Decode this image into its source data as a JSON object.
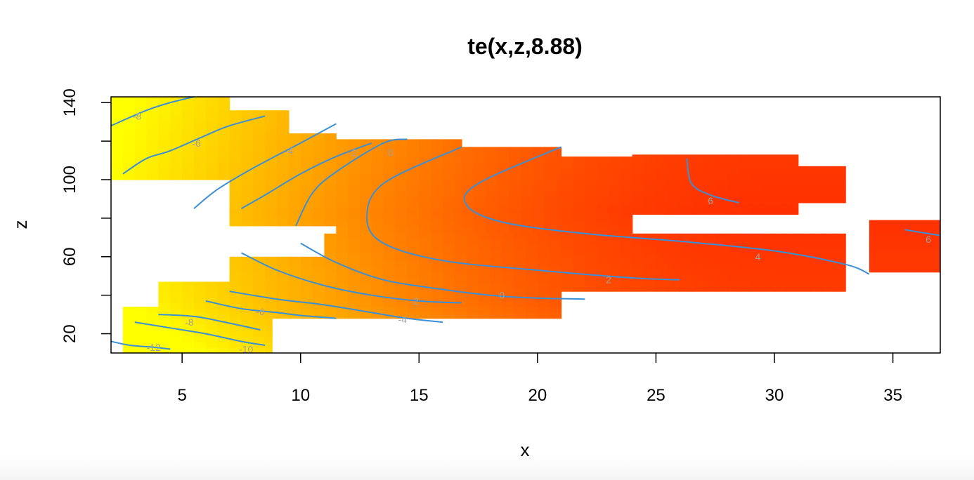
{
  "chart_data": {
    "type": "heatmap",
    "title": "te(x,z,8.88)",
    "xlabel": "x",
    "ylabel": "z",
    "xlim": [
      2,
      37
    ],
    "ylim": [
      10,
      143
    ],
    "x_ticks": [
      5,
      10,
      15,
      20,
      25,
      30,
      35
    ],
    "y_ticks": [
      20,
      40,
      60,
      80,
      100,
      120,
      140
    ],
    "y_tick_labels": [
      20,
      60,
      100,
      140
    ],
    "colors": {
      "low": "#ffff00",
      "high": "#ff2000",
      "contour": "#3b8fd6",
      "contour_label": "#a0a0a0"
    },
    "color_range": [
      -13,
      8
    ],
    "regions": [
      {
        "x": [
          2,
          7
        ],
        "z": [
          100,
          143
        ]
      },
      {
        "x": [
          7,
          9.5
        ],
        "z": [
          76,
          136
        ]
      },
      {
        "x": [
          9.5,
          11.5
        ],
        "z": [
          76,
          124
        ]
      },
      {
        "x": [
          11.5,
          16.8
        ],
        "z": [
          70,
          121
        ]
      },
      {
        "x": [
          16.8,
          21
        ],
        "z": [
          70,
          117
        ]
      },
      {
        "x": [
          21,
          24
        ],
        "z": [
          70,
          112
        ]
      },
      {
        "x": [
          24,
          31
        ],
        "z": [
          82,
          113
        ]
      },
      {
        "x": [
          31,
          33
        ],
        "z": [
          88,
          107
        ]
      },
      {
        "x": [
          11,
          33
        ],
        "z": [
          42,
          72
        ]
      },
      {
        "x": [
          7,
          21
        ],
        "z": [
          28,
          60
        ]
      },
      {
        "x": [
          2.5,
          8.8
        ],
        "z": [
          10,
          34
        ]
      },
      {
        "x": [
          4,
          11
        ],
        "z": [
          33,
          47
        ]
      },
      {
        "x": [
          34,
          37
        ],
        "z": [
          52,
          79
        ]
      }
    ],
    "contours": [
      {
        "level": -12,
        "label": "-12",
        "points": [
          [
            2,
            16
          ],
          [
            2.8,
            14
          ],
          [
            3.8,
            13
          ],
          [
            4.5,
            12
          ]
        ],
        "label_at": [
          3.8,
          13
        ]
      },
      {
        "level": -10,
        "label": "-10",
        "points": [
          [
            3,
            26
          ],
          [
            4.5,
            23
          ],
          [
            6,
            20
          ],
          [
            7.5,
            16
          ],
          [
            8.5,
            14
          ]
        ],
        "label_at": [
          7.7,
          12
        ]
      },
      {
        "level": -8,
        "label": "-8",
        "points": [
          [
            2,
            128
          ],
          [
            3.5,
            136
          ],
          [
            4.5,
            140
          ],
          [
            5.5,
            143
          ]
        ],
        "label_at": [
          3.1,
          133
        ]
      },
      {
        "level": -8,
        "label": "-8",
        "points": [
          [
            4,
            30
          ],
          [
            5.5,
            29
          ],
          [
            7,
            25.5
          ],
          [
            8.3,
            22
          ]
        ],
        "label_at": [
          5.3,
          26
        ]
      },
      {
        "level": -6,
        "label": "-6",
        "points": [
          [
            2.5,
            103
          ],
          [
            3.5,
            111
          ],
          [
            4.5,
            115
          ],
          [
            6,
            123
          ],
          [
            7,
            128
          ],
          [
            8.5,
            133
          ]
        ],
        "label_at": [
          5.6,
          119
        ]
      },
      {
        "level": -6,
        "label": "-6",
        "points": [
          [
            6,
            37
          ],
          [
            7.5,
            33
          ],
          [
            9,
            31
          ],
          [
            10,
            29.5
          ],
          [
            11.5,
            28
          ]
        ],
        "label_at": [
          8.3,
          31.5
        ]
      },
      {
        "level": -4,
        "label": "-4",
        "points": [
          [
            5.5,
            85
          ],
          [
            6.5,
            95
          ],
          [
            8,
            106
          ],
          [
            10,
            119
          ],
          [
            11.5,
            129
          ]
        ],
        "label_at": [
          9.5,
          115
        ]
      },
      {
        "level": -4,
        "label": "-4",
        "points": [
          [
            7,
            42
          ],
          [
            9,
            38
          ],
          [
            11,
            35
          ],
          [
            13,
            31
          ],
          [
            14.5,
            28
          ],
          [
            16,
            26
          ]
        ],
        "label_at": [
          14.3,
          27.5
        ]
      },
      {
        "level": -2,
        "label": "-2",
        "points": [
          [
            7.5,
            85
          ],
          [
            8.5,
            92
          ],
          [
            10,
            103
          ],
          [
            11.5,
            112
          ],
          [
            13,
            119
          ]
        ],
        "label_at": [
          12.2,
          114
        ]
      },
      {
        "level": -2,
        "label": "-2",
        "points": [
          [
            7.5,
            62
          ],
          [
            9,
            53
          ],
          [
            11,
            45
          ],
          [
            13,
            40
          ],
          [
            15,
            37
          ],
          [
            16.8,
            36
          ]
        ],
        "label_at": [
          14.8,
          37
        ]
      },
      {
        "level": 0,
        "label": "0",
        "points": [
          [
            9.8,
            76
          ],
          [
            10.5,
            93
          ],
          [
            11.5,
            104
          ],
          [
            13.5,
            119
          ],
          [
            14.5,
            121
          ]
        ],
        "label_at": [
          13.8,
          114
        ]
      },
      {
        "level": 0,
        "label": "0",
        "points": [
          [
            10,
            67
          ],
          [
            11.5,
            57
          ],
          [
            13.5,
            48
          ],
          [
            16,
            43
          ],
          [
            18,
            40
          ],
          [
            20,
            38.5
          ],
          [
            22,
            38
          ]
        ],
        "label_at": [
          18.5,
          40
        ]
      },
      {
        "level": 2,
        "label": "2",
        "points": [
          [
            16.8,
            117
          ],
          [
            13.5,
            98
          ],
          [
            12.8,
            80
          ],
          [
            13.5,
            67
          ],
          [
            16,
            58
          ],
          [
            20,
            53
          ],
          [
            24,
            49
          ],
          [
            26,
            48
          ]
        ],
        "label_at": [
          23,
          48
        ]
      },
      {
        "level": 4,
        "label": "4",
        "points": [
          [
            21,
            117
          ],
          [
            17.5,
            98
          ],
          [
            17,
            87
          ],
          [
            18.5,
            78
          ],
          [
            22,
            72
          ],
          [
            26,
            68
          ],
          [
            30,
            63
          ],
          [
            33,
            56
          ],
          [
            34,
            51
          ]
        ],
        "label_at": [
          29.3,
          60
        ]
      },
      {
        "level": 6,
        "label": "6",
        "points": [
          [
            26.3,
            111
          ],
          [
            26.5,
            98
          ],
          [
            27.3,
            92
          ],
          [
            28.5,
            88
          ]
        ],
        "label_at": [
          27.3,
          89
        ]
      },
      {
        "level": 6,
        "label": "6",
        "points": [
          [
            35.5,
            74
          ],
          [
            37,
            71
          ]
        ],
        "label_at": [
          36.5,
          69
        ]
      }
    ]
  }
}
